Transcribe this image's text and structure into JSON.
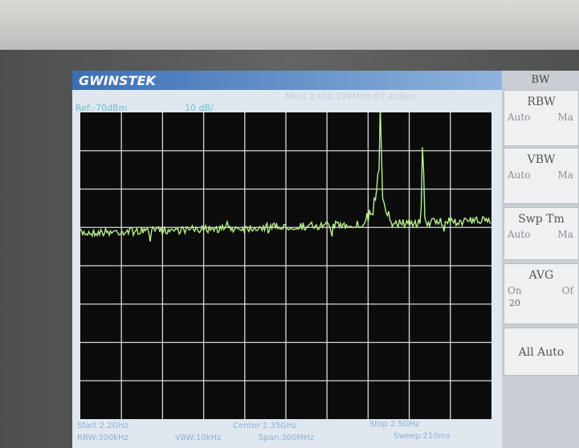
{
  "header": {
    "brand": "GWINSTEK",
    "ref_level": "Ref:-70dBm",
    "scale": "10 dB/",
    "marker": "Mkr1 2400.199MHz-97.4dBm"
  },
  "footer": {
    "start": "Start 2.2GHz",
    "center": "Center 2.35GHz",
    "stop": "Stop 2.5GHz",
    "rbw": "RBW:300kHz",
    "vbw": "VBW:10kHz",
    "span": "Span:300MHz",
    "sweep": "Sweep:210ms"
  },
  "menu": {
    "title": "BW",
    "items": [
      {
        "label": "RBW",
        "options": [
          "Auto",
          "Ma"
        ]
      },
      {
        "label": "VBW",
        "options": [
          "Auto",
          "Ma"
        ]
      },
      {
        "label": "Swp Tm",
        "options": [
          "Auto",
          "Ma"
        ]
      },
      {
        "label": "AVG",
        "options": [
          "On",
          "Of"
        ],
        "value": "20"
      },
      {
        "label": "All Auto"
      }
    ]
  }
}
